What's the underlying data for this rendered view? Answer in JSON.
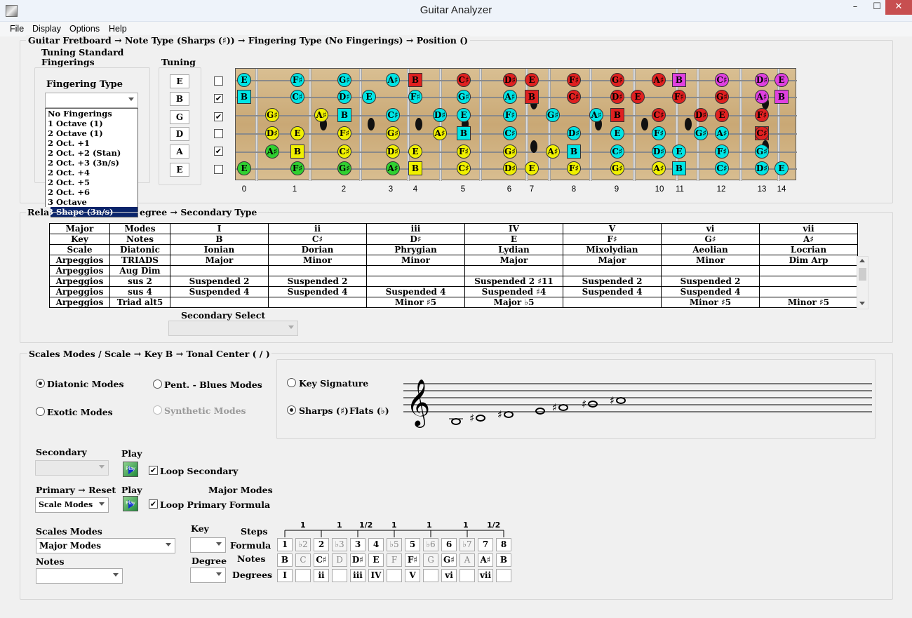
{
  "window": {
    "title": "Guitar Analyzer",
    "minimize": "–",
    "maximize": "☐",
    "close": "✕"
  },
  "menu": [
    "File",
    "Display",
    "Options",
    "Help"
  ],
  "breadcrumb": {
    "text": "Guitar Fretboard  →  Note Type (Sharps (♯))  →  Fingering Type (No Fingerings)  →  Position  ()",
    "tuning_line1": "Tuning Standard",
    "tuning_line2": "Fingerings"
  },
  "fingering": {
    "label": "Fingering Type",
    "value": "",
    "options": [
      "No Fingerings",
      "1 Octave (1)",
      "2 Octave (1)",
      "2 Oct. +1",
      "2 Oct. +2 (Stan)",
      "2 Oct. +3 (3n/s)",
      "2 Oct. +4",
      "2 Oct. +5",
      "2 Oct. +6",
      "3 Octave",
      "3 Shape (3n/s)"
    ]
  },
  "tuning": {
    "label": "Tuning",
    "strings": [
      "E",
      "B",
      "G",
      "D",
      "A",
      "E"
    ],
    "checked": [
      false,
      true,
      true,
      false,
      true,
      false
    ]
  },
  "fretboard": {
    "fret_numbers": [
      "0",
      "1",
      "2",
      "3",
      "4",
      "5",
      "6",
      "7",
      "8",
      "9",
      "10",
      "11",
      "12",
      "13",
      "14"
    ],
    "strings": [
      [
        [
          "E",
          "c",
          "#00e5e5"
        ],
        [
          "F♯",
          "c",
          "#00e5e5"
        ],
        [
          "G♯",
          "c",
          "#00e5e5"
        ],
        [
          "A♯",
          "c",
          "#00e5e5"
        ],
        [
          "B",
          "s",
          "#e02020"
        ],
        [
          "C♯",
          "c",
          "#e02020"
        ],
        [
          "D♯",
          "c",
          "#e02020"
        ],
        [
          "E",
          "c",
          "#e02020"
        ],
        [
          "F♯",
          "c",
          "#e02020"
        ],
        [
          "G♯",
          "c",
          "#e02020"
        ],
        [
          "A♯",
          "c",
          "#e02020"
        ],
        [
          "B",
          "s",
          "#e040e0"
        ],
        [
          "C♯",
          "c",
          "#e040e0"
        ],
        [
          "D♯",
          "c",
          "#e040e0"
        ],
        [
          "E",
          "c",
          "#e040e0"
        ]
      ],
      [
        [
          "B",
          "s",
          "#00e5e5"
        ],
        [
          "C♯",
          "c",
          "#00e5e5"
        ],
        [
          "D♯",
          "c",
          "#00e5e5"
        ],
        [
          "E",
          "c",
          "#00e5e5"
        ],
        [
          "F♯",
          "c",
          "#00e5e5"
        ],
        [
          "G♯",
          "c",
          "#00e5e5"
        ],
        [
          "A♯",
          "c",
          "#00e5e5"
        ],
        [
          "B",
          "s",
          "#e02020"
        ],
        [
          "C♯",
          "c",
          "#e02020"
        ],
        [
          "D♯",
          "c",
          "#e02020"
        ],
        [
          "E",
          "c",
          "#e02020"
        ],
        [
          "F♯",
          "c",
          "#e02020"
        ],
        [
          "G♯",
          "c",
          "#e02020"
        ],
        [
          "A♯",
          "c",
          "#e040e0"
        ],
        [
          "B",
          "s",
          "#e040e0"
        ]
      ],
      [
        [
          "G♯",
          "c",
          "#f0f000"
        ],
        [
          "A♯",
          "c",
          "#f0f000"
        ],
        [
          "B",
          "s",
          "#00e5e5"
        ],
        [
          "C♯",
          "c",
          "#00e5e5"
        ],
        [
          "D♯",
          "c",
          "#00e5e5"
        ],
        [
          "E",
          "c",
          "#00e5e5"
        ],
        [
          "F♯",
          "c",
          "#00e5e5"
        ],
        [
          "G♯",
          "c",
          "#00e5e5"
        ],
        [
          "A♯",
          "c",
          "#00e5e5"
        ],
        [
          "B",
          "s",
          "#e02020"
        ],
        [
          "C♯",
          "c",
          "#e02020"
        ],
        [
          "D♯",
          "c",
          "#e02020"
        ],
        [
          "E",
          "c",
          "#e02020"
        ],
        [
          "F♯",
          "c",
          "#e02020"
        ]
      ],
      [
        [
          "D♯",
          "c",
          "#f0f000"
        ],
        [
          "E",
          "c",
          "#f0f000"
        ],
        [
          "F♯",
          "c",
          "#f0f000"
        ],
        [
          "G♯",
          "c",
          "#f0f000"
        ],
        [
          "A♯",
          "c",
          "#f0f000"
        ],
        [
          "B",
          "s",
          "#00e5e5"
        ],
        [
          "C♯",
          "c",
          "#00e5e5"
        ],
        [
          "D♯",
          "c",
          "#00e5e5"
        ],
        [
          "E",
          "c",
          "#00e5e5"
        ],
        [
          "F♯",
          "c",
          "#00e5e5"
        ],
        [
          "G♯",
          "c",
          "#00e5e5"
        ],
        [
          "A♯",
          "c",
          "#00e5e5"
        ],
        [
          "B",
          "s",
          "#e02020"
        ],
        [
          "C♯",
          "c",
          "#e02020"
        ]
      ],
      [
        [
          "A♯",
          "c",
          "#30d030"
        ],
        [
          "B",
          "s",
          "#f0f000"
        ],
        [
          "C♯",
          "c",
          "#f0f000"
        ],
        [
          "D♯",
          "c",
          "#f0f000"
        ],
        [
          "E",
          "c",
          "#f0f000"
        ],
        [
          "F♯",
          "c",
          "#f0f000"
        ],
        [
          "G♯",
          "c",
          "#f0f000"
        ],
        [
          "A♯",
          "c",
          "#f0f000"
        ],
        [
          "B",
          "s",
          "#00e5e5"
        ],
        [
          "C♯",
          "c",
          "#00e5e5"
        ],
        [
          "D♯",
          "c",
          "#00e5e5"
        ],
        [
          "E",
          "c",
          "#00e5e5"
        ],
        [
          "F♯",
          "c",
          "#00e5e5"
        ],
        [
          "G♯",
          "c",
          "#00e5e5"
        ]
      ],
      [
        [
          "E",
          "c",
          "#30d030"
        ],
        [
          "F♯",
          "c",
          "#30d030"
        ],
        [
          "G♯",
          "c",
          "#30d030"
        ],
        [
          "A♯",
          "c",
          "#30d030"
        ],
        [
          "B",
          "s",
          "#f0f000"
        ],
        [
          "C♯",
          "c",
          "#f0f000"
        ],
        [
          "D♯",
          "c",
          "#f0f000"
        ],
        [
          "E",
          "c",
          "#f0f000"
        ],
        [
          "F♯",
          "c",
          "#f0f000"
        ],
        [
          "G♯",
          "c",
          "#f0f000"
        ],
        [
          "A♯",
          "c",
          "#f0f000"
        ],
        [
          "B",
          "s",
          "#00e5e5"
        ],
        [
          "C♯",
          "c",
          "#00e5e5"
        ],
        [
          "D♯",
          "c",
          "#00e5e5"
        ],
        [
          "E",
          "c",
          "#00e5e5"
        ]
      ]
    ]
  },
  "relations": {
    "title": "Rela",
    "title2": "egree  →  Secondary Type",
    "rows": [
      [
        "Major",
        "Modes",
        "I",
        "ii",
        "iii",
        "IV",
        "V",
        "vi",
        "vii"
      ],
      [
        "Key",
        "Notes",
        "B",
        "C♯",
        "D♯",
        "E",
        "F♯",
        "G♯",
        "A♯"
      ],
      [
        "Scale",
        "Diatonic",
        "Ionian",
        "Dorian",
        "Phrygian",
        "Lydian",
        "Mixolydian",
        "Aeolian",
        "Locrian"
      ],
      [
        "Arpeggios",
        "TRIADS",
        "Major",
        "Minor",
        "Minor",
        "Major",
        "Major",
        "Minor",
        "Dim Arp"
      ],
      [
        "Arpeggios",
        "Aug Dim",
        "",
        "",
        "",
        "",
        "",
        "",
        ""
      ],
      [
        "Arpeggios",
        "sus 2",
        "Suspended 2",
        "Suspended 2",
        "",
        "Suspended 2 ♯11",
        "Suspended 2",
        "Suspended 2",
        ""
      ],
      [
        "Arpeggios",
        "sus 4",
        "Suspended 4",
        "Suspended 4",
        "Suspended 4",
        "Suspended ♯4",
        "Suspended 4",
        "Suspended 4",
        ""
      ],
      [
        "Arpeggios",
        "Triad alt5",
        "",
        "",
        "Minor ♯5",
        "Major ♭5",
        "",
        "Minor ♯5",
        "Minor ♯5"
      ]
    ],
    "secondary_select_label": "Secondary Select"
  },
  "scales": {
    "title": "Scales Modes / Scale  →  Key  B  →  Tonal Center   (   /   )",
    "radios": {
      "diatonic": "Diatonic Modes",
      "pent": "Pent. - Blues Modes",
      "exotic": "Exotic Modes",
      "synthetic": "Synthetic Modes",
      "keysig": "Key Signature",
      "sharps": "Sharps (♯)",
      "flats": "Flats (♭)"
    },
    "secondary_label": "Secondary",
    "play_label": "Play",
    "play_icon_text": "Play",
    "loop_secondary": "Loop Secondary",
    "primary_label": "Primary  →  Reset",
    "play_label2": "Play",
    "major_modes": "Major Modes",
    "scale_modes_value": "Scale Modes",
    "loop_primary": "Loop  Primary Formula",
    "scales_modes_label": "Scales Modes",
    "scales_modes_value": "Major Modes",
    "notes_label": "Notes",
    "key_label": "Key",
    "degree_label": "Degree",
    "steps_label": "Steps",
    "formula_label": "Formula",
    "notes_label2": "Notes",
    "degrees_label": "Degrees",
    "steps": [
      "1",
      "1",
      "1/2",
      "1",
      "1",
      "1",
      "1/2"
    ],
    "formula": [
      [
        "1",
        false
      ],
      [
        "♭2",
        true
      ],
      [
        "2",
        false
      ],
      [
        "♭3",
        true
      ],
      [
        "3",
        false
      ],
      [
        "4",
        false
      ],
      [
        "♭5",
        true
      ],
      [
        "5",
        false
      ],
      [
        "♭6",
        true
      ],
      [
        "6",
        false
      ],
      [
        "♭7",
        true
      ],
      [
        "7",
        false
      ],
      [
        "8",
        false
      ]
    ],
    "notes": [
      [
        "B",
        false
      ],
      [
        "C",
        true
      ],
      [
        "C♯",
        false
      ],
      [
        "D",
        true
      ],
      [
        "D♯",
        false
      ],
      [
        "E",
        false
      ],
      [
        "F",
        true
      ],
      [
        "F♯",
        false
      ],
      [
        "G",
        true
      ],
      [
        "G♯",
        false
      ],
      [
        "A",
        true
      ],
      [
        "A♯",
        false
      ],
      [
        "B",
        false
      ]
    ],
    "degrees": [
      "I",
      "",
      "ii",
      "",
      "iii",
      "IV",
      "",
      "V",
      "",
      "vi",
      "",
      "vii",
      ""
    ],
    "staff_notes": [
      [
        "",
        0
      ],
      [
        "♯",
        1
      ],
      [
        "♯",
        2
      ],
      [
        "",
        3
      ],
      [
        "♯",
        4
      ],
      [
        "♯",
        5
      ],
      [
        "♯",
        6
      ]
    ]
  }
}
